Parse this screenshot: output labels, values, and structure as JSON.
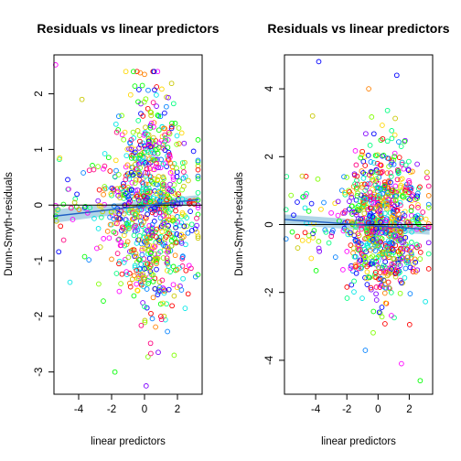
{
  "colors": {
    "zero_line": "#000000",
    "band_fill": "#9ecae1",
    "fit_line": "#1f5fc4",
    "point_palette": [
      "#ff0000",
      "#ff8000",
      "#ffd700",
      "#c8c800",
      "#80ff00",
      "#00ff00",
      "#00ff80",
      "#00e6e6",
      "#0080ff",
      "#0000ff",
      "#8000ff",
      "#ff00ff",
      "#ff0080"
    ]
  },
  "chart_data": [
    {
      "type": "scatter",
      "title": "Residuals vs linear predictors",
      "xlabel": "linear predictors",
      "ylabel": "Dunn-Smyth-residuals",
      "xlim": [
        -5.5,
        3.5
      ],
      "ylim": [
        -3.4,
        2.7
      ],
      "xticks": [
        -4,
        -2,
        0,
        2
      ],
      "yticks": [
        -3,
        -2,
        -1,
        0,
        1,
        2
      ],
      "n_points": 900,
      "point_cloud_note": "dense cloud concentrated between x=-2 and x=3, wider spread near x=0..2",
      "reference_line_y": 0,
      "fit_line": {
        "x": [
          -5.5,
          3.3
        ],
        "y": [
          -0.2,
          0.1
        ]
      },
      "band": {
        "x": [
          -5.5,
          3.3
        ],
        "upper": [
          -0.08,
          0.18
        ],
        "lower": [
          -0.32,
          0.02
        ]
      },
      "extreme_points": [
        {
          "x": -5.4,
          "y": 2.52
        },
        {
          "x": 0.1,
          "y": -3.25
        },
        {
          "x": -1.8,
          "y": -3.0
        },
        {
          "x": 1.8,
          "y": -2.7
        },
        {
          "x": -3.8,
          "y": 1.9
        },
        {
          "x": 0.0,
          "y": 2.35
        }
      ]
    },
    {
      "type": "scatter",
      "title": "Residuals vs linear predictors",
      "xlabel": "linear predictors",
      "ylabel": "Dunn-Smyth-residuals",
      "xlim": [
        -6.0,
        3.5
      ],
      "ylim": [
        -5.0,
        5.0
      ],
      "xticks": [
        -4,
        -2,
        0,
        2
      ],
      "yticks": [
        -4,
        -2,
        0,
        2,
        4
      ],
      "n_points": 900,
      "point_cloud_note": "dense cloud concentrated between x=-2 and x=3",
      "reference_line_y": 0,
      "fit_line": {
        "x": [
          -6.0,
          3.3
        ],
        "y": [
          0.15,
          -0.15
        ]
      },
      "band": {
        "x": [
          -6.0,
          3.3
        ],
        "upper": [
          0.3,
          0.0
        ],
        "lower": [
          0.0,
          -0.3
        ]
      },
      "extreme_points": [
        {
          "x": -3.8,
          "y": 4.8
        },
        {
          "x": 2.7,
          "y": -4.6
        },
        {
          "x": 1.5,
          "y": -4.1
        },
        {
          "x": -0.6,
          "y": 4.0
        },
        {
          "x": 1.2,
          "y": 4.4
        },
        {
          "x": -4.2,
          "y": 3.2
        }
      ]
    }
  ]
}
